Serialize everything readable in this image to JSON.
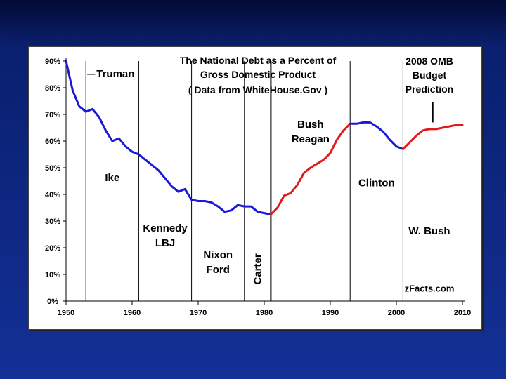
{
  "chart_data": {
    "type": "line",
    "title": [
      "The National Debt as a Percent of",
      "Gross Domestic Product",
      "( Data from WhiteHouse.Gov )"
    ],
    "xlim": [
      1950,
      2010
    ],
    "ylim": [
      0,
      90
    ],
    "x_ticks": [
      "1950",
      "1960",
      "1970",
      "1980",
      "1990",
      "2000",
      "2010"
    ],
    "y_ticks": [
      "0%",
      "10%",
      "20%",
      "30%",
      "40%",
      "50%",
      "60%",
      "70%",
      "80%",
      "90%"
    ],
    "grid": false,
    "series": [
      {
        "color": "#1a1ad6",
        "x": [
          1950,
          1951,
          1952,
          1953,
          1954,
          1955,
          1956,
          1957,
          1958,
          1959,
          1960,
          1961,
          1962,
          1963,
          1964,
          1965,
          1966,
          1967,
          1968,
          1969,
          1970,
          1971,
          1972,
          1973,
          1974,
          1975,
          1976,
          1977,
          1978,
          1979,
          1980,
          1981
        ],
        "y": [
          90,
          79,
          73,
          71,
          72,
          69,
          64,
          60,
          61,
          58,
          56,
          55,
          53,
          51,
          49,
          46,
          43,
          41,
          42,
          38,
          37.5,
          37.5,
          37,
          35.5,
          33.5,
          34,
          36,
          35.5,
          35.5,
          33.5,
          33,
          32.5
        ]
      },
      {
        "color": "#e21a1a",
        "x": [
          1981,
          1982,
          1983,
          1984,
          1985,
          1986,
          1987,
          1988,
          1989,
          1990,
          1991,
          1992,
          1993
        ],
        "y": [
          32.5,
          35,
          39.5,
          40.5,
          43.5,
          48,
          50,
          51.5,
          53,
          55.5,
          60.5,
          64,
          66.5
        ]
      },
      {
        "color": "#1a1ad6",
        "x": [
          1993,
          1994,
          1995,
          1996,
          1997,
          1998,
          1999,
          2000,
          2001
        ],
        "y": [
          66.5,
          66.5,
          67,
          67,
          65.5,
          63.5,
          60.5,
          58,
          57
        ]
      },
      {
        "color": "#e21a1a",
        "x": [
          2001,
          2002,
          2003,
          2004,
          2005,
          2006,
          2007,
          2008,
          2009,
          2010
        ],
        "y": [
          57,
          59.5,
          62,
          64,
          64.5,
          64.5,
          65,
          65.5,
          66,
          66
        ]
      }
    ],
    "term_lines": [
      1953,
      1961,
      1969,
      1977,
      1981,
      1993,
      2001
    ],
    "term_labels": [
      {
        "lines": [
          "Truman"
        ],
        "x": 1953.5,
        "y": 84
      },
      {
        "lines": [
          "Ike"
        ],
        "x": 1957,
        "y": 45
      },
      {
        "lines": [
          "Kennedy",
          "LBJ"
        ],
        "x": 1965,
        "y": 26
      },
      {
        "lines": [
          "Nixon",
          "Ford"
        ],
        "x": 1973,
        "y": 16
      },
      {
        "lines": [
          "Carter"
        ],
        "x": 1979,
        "y": 12,
        "vertical": true
      },
      {
        "lines": [
          "Bush",
          "Reagan"
        ],
        "x": 1987,
        "y": 65
      },
      {
        "lines": [
          "Clinton"
        ],
        "x": 1997,
        "y": 43
      },
      {
        "lines": [
          "W. Bush"
        ],
        "x": 2005,
        "y": 25
      }
    ],
    "omb_label": [
      "2008 OMB",
      "Budget",
      "Prediction"
    ],
    "credit": "zFacts.com"
  }
}
